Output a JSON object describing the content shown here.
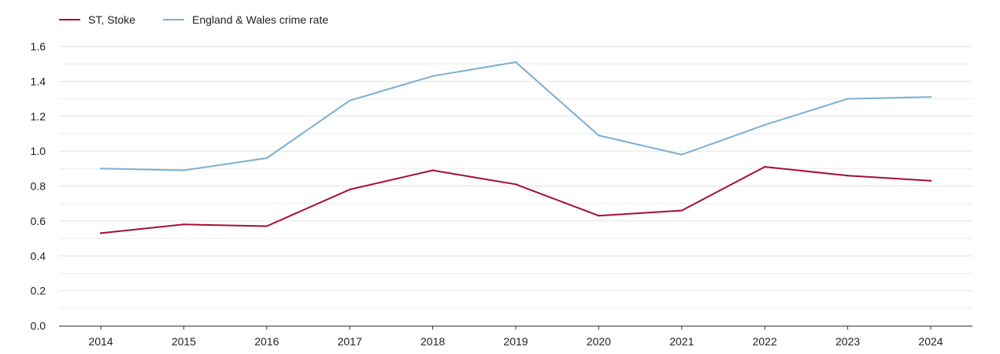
{
  "chart_data": {
    "type": "line",
    "title": "",
    "xlabel": "",
    "ylabel": "",
    "legend_position": "top-left",
    "grid": true,
    "x": [
      2014,
      2015,
      2016,
      2017,
      2018,
      2019,
      2020,
      2021,
      2022,
      2023,
      2024
    ],
    "x_tick_labels": [
      "2014",
      "2015",
      "2016",
      "2017",
      "2018",
      "2019",
      "2020",
      "2021",
      "2022",
      "2023",
      "2024"
    ],
    "ylim": [
      0,
      1.6
    ],
    "y_ticks": [
      0,
      0.2,
      0.4,
      0.6,
      0.8,
      1.0,
      1.2,
      1.4,
      1.6
    ],
    "y_tick_labels": [
      "0.0",
      "0.2",
      "0.4",
      "0.6",
      "0.8",
      "1.0",
      "1.2",
      "1.4",
      "1.6"
    ],
    "series": [
      {
        "name": "ST, Stoke",
        "color": "#a50f37",
        "values": [
          0.53,
          0.58,
          0.57,
          0.78,
          0.89,
          0.81,
          0.63,
          0.66,
          0.91,
          0.86,
          0.83
        ]
      },
      {
        "name": "England & Wales crime rate",
        "color": "#7bafd4",
        "values": [
          0.9,
          0.89,
          0.96,
          1.29,
          1.43,
          1.51,
          1.09,
          0.98,
          1.15,
          1.3,
          1.31
        ]
      }
    ]
  }
}
